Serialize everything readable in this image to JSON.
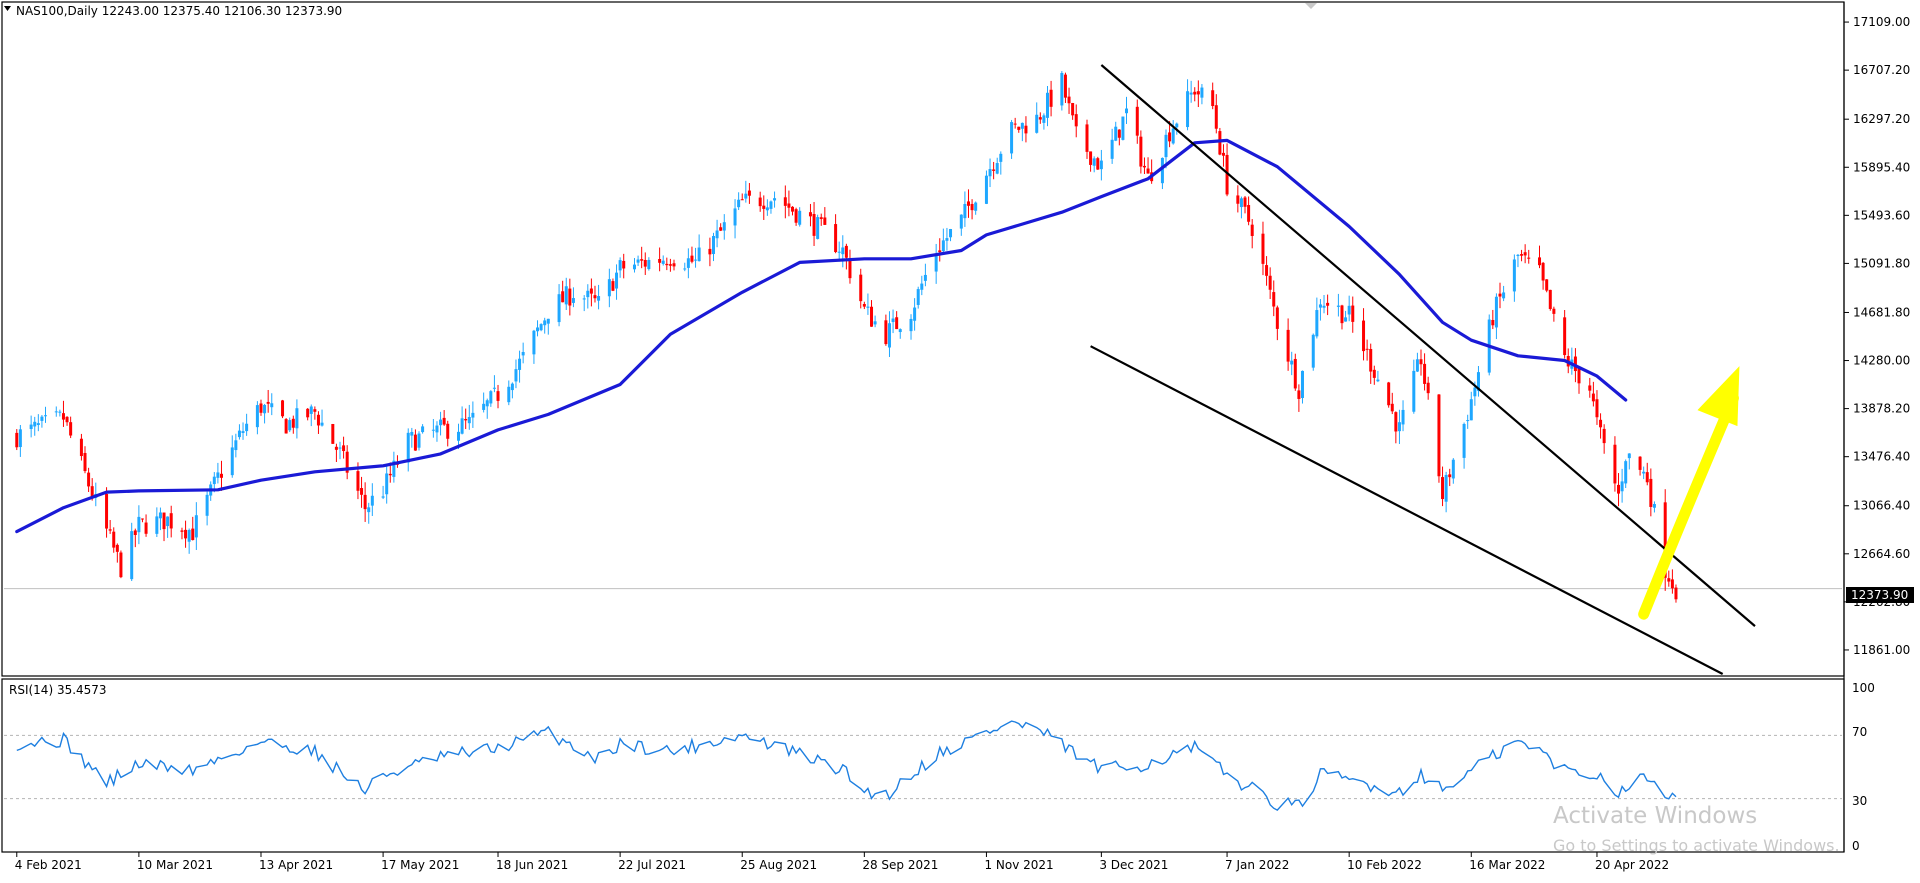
{
  "header": {
    "title": "NAS100,Daily  12243.00 12375.40 12106.30 12373.90"
  },
  "rsi_panel": {
    "label": "RSI(14) 35.4573",
    "levels": [
      "100",
      "70",
      "30",
      "0"
    ]
  },
  "watermark": {
    "line1": "Activate Windows",
    "line2": "Go to Settings to activate Windows."
  },
  "colors": {
    "bull": "#1ea7ff",
    "bear": "#ff0000",
    "ma": "#1a1ad6",
    "rsi": "#1e7fe0",
    "channel": "#000000",
    "arrow": "#ffff00"
  },
  "icons": {
    "scroll_marker": "triangle-down-icon"
  },
  "chart_data": [
    {
      "type": "candlestick",
      "symbol": "NAS100",
      "timeframe": "Daily",
      "last_price": "12373.90",
      "ylim": [
        11660,
        17260
      ],
      "price_ticks": [
        "17109.00",
        "16707.20",
        "16297.20",
        "15895.40",
        "15493.60",
        "15091.80",
        "14681.80",
        "14280.00",
        "13878.20",
        "13476.40",
        "13066.40",
        "12664.60",
        "12262.80",
        "11861.00"
      ],
      "date_ticks": [
        "4 Feb 2021",
        "10 Mar 2021",
        "13 Apr 2021",
        "17 May 2021",
        "18 Jun 2021",
        "22 Jul 2021",
        "25 Aug 2021",
        "28 Sep 2021",
        "1 Nov 2021",
        "3 Dec 2021",
        "7 Jan 2022",
        "10 Feb 2022",
        "16 Mar 2022",
        "20 Apr 2022"
      ],
      "close_path": [
        [
          "4 Feb 2021",
          13650
        ],
        [
          "17 Feb 2021",
          13800
        ],
        [
          "1 Mar 2021",
          12850
        ],
        [
          "5 Mar 2021",
          12550
        ],
        [
          "10 Mar 2021",
          12900
        ],
        [
          "18 Mar 2021",
          12950
        ],
        [
          "25 Mar 2021",
          12850
        ],
        [
          "1 Apr 2021",
          13300
        ],
        [
          "8 Apr 2021",
          13700
        ],
        [
          "13 Apr 2021",
          13900
        ],
        [
          "20 Apr 2021",
          13750
        ],
        [
          "28 Apr 2021",
          13850
        ],
        [
          "5 May 2021",
          13500
        ],
        [
          "12 May 2021",
          13050
        ],
        [
          "17 May 2021",
          13200
        ],
        [
          "24 May 2021",
          13600
        ],
        [
          "2 Jun 2021",
          13700
        ],
        [
          "10 Jun 2021",
          13750
        ],
        [
          "18 Jun 2021",
          14000
        ],
        [
          "25 Jun 2021",
          14300
        ],
        [
          "2 Jul 2021",
          14700
        ],
        [
          "9 Jul 2021",
          14850
        ],
        [
          "16 Jul 2021",
          14750
        ],
        [
          "22 Jul 2021",
          15050
        ],
        [
          "29 Jul 2021",
          15100
        ],
        [
          "5 Aug 2021",
          15150
        ],
        [
          "12 Aug 2021",
          15100
        ],
        [
          "19 Aug 2021",
          15350
        ],
        [
          "25 Aug 2021",
          15600
        ],
        [
          "3 Sep 2021",
          15650
        ],
        [
          "10 Sep 2021",
          15500
        ],
        [
          "17 Sep 2021",
          15350
        ],
        [
          "22 Sep 2021",
          15200
        ],
        [
          "28 Sep 2021",
          14700
        ],
        [
          "4 Oct 2021",
          14500
        ],
        [
          "11 Oct 2021",
          14700
        ],
        [
          "18 Oct 2021",
          15200
        ],
        [
          "25 Oct 2021",
          15450
        ],
        [
          "1 Nov 2021",
          15850
        ],
        [
          "8 Nov 2021",
          16200
        ],
        [
          "15 Nov 2021",
          16300
        ],
        [
          "22 Nov 2021",
          16600
        ],
        [
          "26 Nov 2021",
          16150
        ],
        [
          "3 Dec 2021",
          15900
        ],
        [
          "10 Dec 2021",
          16350
        ],
        [
          "16 Dec 2021",
          15800
        ],
        [
          "22 Dec 2021",
          16200
        ],
        [
          "29 Dec 2021",
          16550
        ],
        [
          "3 Jan 2022",
          16400
        ],
        [
          "7 Jan 2022",
          15750
        ],
        [
          "14 Jan 2022",
          15400
        ],
        [
          "21 Jan 2022",
          14600
        ],
        [
          "27 Jan 2022",
          14050
        ],
        [
          "2 Feb 2022",
          14800
        ],
        [
          "10 Feb 2022",
          14650
        ],
        [
          "17 Feb 2022",
          14200
        ],
        [
          "24 Feb 2022",
          13700
        ],
        [
          "2 Mar 2022",
          14300
        ],
        [
          "8 Mar 2022",
          13150
        ],
        [
          "16 Mar 2022",
          13950
        ],
        [
          "22 Mar 2022",
          14650
        ],
        [
          "29 Mar 2022",
          15150
        ],
        [
          "4 Apr 2022",
          15000
        ],
        [
          "11 Apr 2022",
          14300
        ],
        [
          "18 Apr 2022",
          14050
        ],
        [
          "20 Apr 2022",
          13750
        ],
        [
          "26 Apr 2022",
          13150
        ],
        [
          "28 Apr 2022",
          13500
        ],
        [
          "4 May 2022",
          13300
        ],
        [
          "9 May 2022",
          12550
        ],
        [
          "12 May 2022",
          12373.9
        ]
      ],
      "moving_average": [
        [
          "4 Feb 2021",
          12850
        ],
        [
          "17 Feb 2021",
          13050
        ],
        [
          "1 Mar 2021",
          13180
        ],
        [
          "10 Mar 2021",
          13190
        ],
        [
          "1 Apr 2021",
          13200
        ],
        [
          "13 Apr 2021",
          13280
        ],
        [
          "28 Apr 2021",
          13350
        ],
        [
          "17 May 2021",
          13400
        ],
        [
          "2 Jun 2021",
          13500
        ],
        [
          "18 Jun 2021",
          13700
        ],
        [
          "2 Jul 2021",
          13830
        ],
        [
          "22 Jul 2021",
          14080
        ],
        [
          "5 Aug 2021",
          14500
        ],
        [
          "25 Aug 2021",
          14850
        ],
        [
          "10 Sep 2021",
          15100
        ],
        [
          "28 Sep 2021",
          15130
        ],
        [
          "11 Oct 2021",
          15130
        ],
        [
          "25 Oct 2021",
          15200
        ],
        [
          "1 Nov 2021",
          15330
        ],
        [
          "22 Nov 2021",
          15520
        ],
        [
          "3 Dec 2021",
          15650
        ],
        [
          "16 Dec 2021",
          15800
        ],
        [
          "29 Dec 2021",
          16100
        ],
        [
          "7 Jan 2022",
          16120
        ],
        [
          "21 Jan 2022",
          15900
        ],
        [
          "10 Feb 2022",
          15400
        ],
        [
          "24 Feb 2022",
          15000
        ],
        [
          "8 Mar 2022",
          14600
        ],
        [
          "16 Mar 2022",
          14450
        ],
        [
          "29 Mar 2022",
          14320
        ],
        [
          "11 Apr 2022",
          14280
        ],
        [
          "20 Apr 2022",
          14150
        ],
        [
          "28 Apr 2022",
          13950
        ]
      ],
      "trendlines": [
        {
          "name": "upper-channel",
          "from": [
            "3 Dec 2021",
            16750
          ],
          "to": [
            "3 Jun 2022",
            12060
          ]
        },
        {
          "name": "lower-channel",
          "from": [
            "30 Nov 2021",
            14400
          ],
          "to": [
            "25 May 2022",
            11660
          ]
        }
      ],
      "annotation_arrow": {
        "from": [
          "3 May 2022",
          12160
        ],
        "to": [
          "28 May 2022",
          14200
        ]
      }
    },
    {
      "type": "line",
      "title": "RSI(14) 35.4573",
      "ylim": [
        0,
        100
      ],
      "levels": [
        70,
        30
      ],
      "points": [
        [
          "4 Feb 2021",
          65
        ],
        [
          "17 Feb 2021",
          67
        ],
        [
          "1 Mar 2021",
          40
        ],
        [
          "10 Mar 2021",
          52
        ],
        [
          "25 Mar 2021",
          48
        ],
        [
          "13 Apr 2021",
          66
        ],
        [
          "28 Apr 2021",
          60
        ],
        [
          "12 May 2021",
          35
        ],
        [
          "17 May 2021",
          45
        ],
        [
          "2 Jun 2021",
          56
        ],
        [
          "18 Jun 2021",
          62
        ],
        [
          "2 Jul 2021",
          72
        ],
        [
          "16 Jul 2021",
          55
        ],
        [
          "22 Jul 2021",
          65
        ],
        [
          "5 Aug 2021",
          60
        ],
        [
          "25 Aug 2021",
          70
        ],
        [
          "10 Sep 2021",
          58
        ],
        [
          "22 Sep 2021",
          48
        ],
        [
          "28 Sep 2021",
          35
        ],
        [
          "4 Oct 2021",
          32
        ],
        [
          "18 Oct 2021",
          58
        ],
        [
          "1 Nov 2021",
          72
        ],
        [
          "8 Nov 2021",
          78
        ],
        [
          "15 Nov 2021",
          74
        ],
        [
          "26 Nov 2021",
          58
        ],
        [
          "3 Dec 2021",
          48
        ],
        [
          "16 Dec 2021",
          52
        ],
        [
          "29 Dec 2021",
          62
        ],
        [
          "7 Jan 2022",
          45
        ],
        [
          "21 Jan 2022",
          27
        ],
        [
          "27 Jan 2022",
          25
        ],
        [
          "2 Feb 2022",
          45
        ],
        [
          "10 Feb 2022",
          42
        ],
        [
          "24 Feb 2022",
          34
        ],
        [
          "2 Mar 2022",
          46
        ],
        [
          "8 Mar 2022",
          35
        ],
        [
          "16 Mar 2022",
          48
        ],
        [
          "29 Mar 2022",
          66
        ],
        [
          "4 Apr 2022",
          60
        ],
        [
          "11 Apr 2022",
          48
        ],
        [
          "20 Apr 2022",
          45
        ],
        [
          "26 Apr 2022",
          35
        ],
        [
          "4 May 2022",
          44
        ],
        [
          "9 May 2022",
          33
        ],
        [
          "12 May 2022",
          35.4573
        ]
      ]
    }
  ]
}
